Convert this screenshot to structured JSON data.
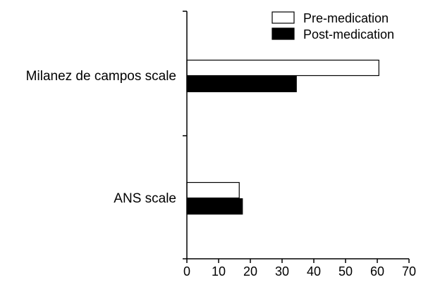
{
  "chart_data": {
    "type": "bar",
    "orientation": "horizontal",
    "categories": [
      "Milanez de campos scale",
      "ANS scale"
    ],
    "series": [
      {
        "name": "Pre-medication",
        "values": [
          60.5,
          16.5
        ],
        "fill": "#ffffff"
      },
      {
        "name": "Post-medication",
        "values": [
          34.5,
          17.5
        ],
        "fill": "#000000"
      }
    ],
    "xlim": [
      0,
      70
    ],
    "xticks": [
      0,
      10,
      20,
      30,
      40,
      50,
      60,
      70
    ],
    "title": "",
    "xlabel": "",
    "ylabel": "",
    "grid": false,
    "legend_position": "top-right"
  }
}
